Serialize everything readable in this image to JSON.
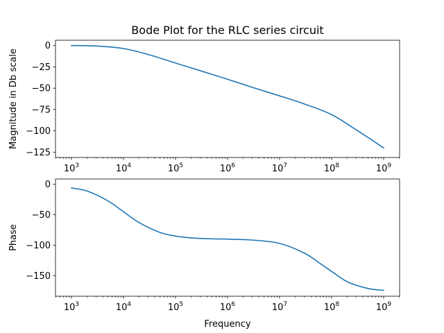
{
  "chart_data": [
    {
      "type": "line",
      "title": "Bode Plot for the RLC series circuit",
      "xlabel": "",
      "ylabel": "Magnitude in Db scale",
      "xscale": "log",
      "xlim": [
        1000,
        1000000000
      ],
      "ylim": [
        -125,
        0
      ],
      "xtick_exponents": [
        3,
        4,
        5,
        6,
        7,
        8,
        9
      ],
      "yticks": [
        0,
        -25,
        -50,
        -75,
        -100,
        -125
      ],
      "ytick_labels": [
        "0",
        "−25",
        "−50",
        "−75",
        "−100",
        "−125"
      ],
      "grid": false,
      "series": [
        {
          "color": "#1f77b4",
          "x": [
            1000,
            3000,
            10000,
            30000,
            100000,
            300000,
            1000000,
            3000000,
            10000000,
            30000000,
            100000000,
            300000000,
            1000000000
          ],
          "y": [
            0,
            -0.5,
            -3.5,
            -10.5,
            -20.5,
            -29.5,
            -39.5,
            -49,
            -59,
            -68.5,
            -81,
            -99,
            -120
          ]
        }
      ]
    },
    {
      "type": "line",
      "title": "",
      "xlabel": "Frequency",
      "ylabel": "Phase",
      "xscale": "log",
      "xlim": [
        1000,
        1000000000
      ],
      "ylim": [
        -175,
        0
      ],
      "xtick_exponents": [
        3,
        4,
        5,
        6,
        7,
        8,
        9
      ],
      "yticks": [
        0,
        -50,
        -100,
        -150
      ],
      "ytick_labels": [
        "0",
        "−50",
        "−100",
        "−150"
      ],
      "grid": false,
      "series": [
        {
          "color": "#1f77b4",
          "x": [
            1000,
            2000,
            5000,
            10000,
            20000,
            50000,
            100000,
            200000,
            500000,
            1000000,
            3000000,
            10000000,
            30000000,
            60000000,
            100000000,
            200000000,
            500000000,
            1000000000
          ],
          "y": [
            -6,
            -11,
            -27,
            -45,
            -63,
            -79,
            -85,
            -88,
            -89.5,
            -90,
            -91.5,
            -97,
            -113,
            -130,
            -143,
            -160,
            -171,
            -174
          ]
        }
      ]
    }
  ]
}
